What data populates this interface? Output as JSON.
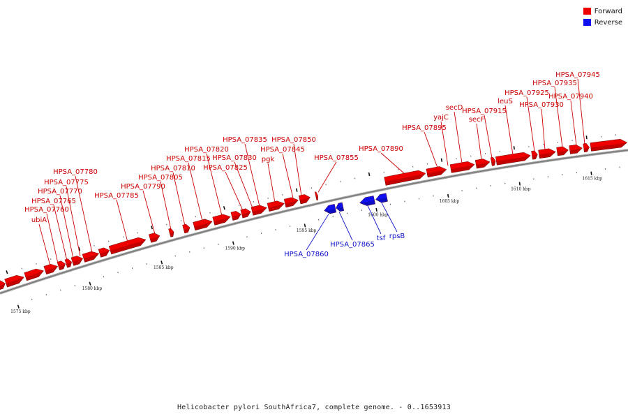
{
  "legend": [
    {
      "label": "Forward",
      "color": "#ee0000"
    },
    {
      "label": "Reverse",
      "color": "#1010ee"
    }
  ],
  "footer": "Helicobacter pylori SouthAfrica7, complete genome. - 0..1653913",
  "colors": {
    "forward": "#ee0000",
    "reverse": "#1010ee",
    "forward_label": "#cc0000",
    "reverse_label": "#1010cc",
    "backbone": "#888888"
  },
  "ruler_labels": [
    "1575 kbp",
    "1580 kbp",
    "1585 kbp",
    "1590 kbp",
    "1595 kbp",
    "1600 kbp",
    "1605 kbp",
    "1610 kbp",
    "1615 kbp"
  ],
  "forward_labels": [
    "ubiA",
    "HPSA_07760",
    "HPSA_07765",
    "HPSA_07770",
    "HPSA_07775",
    "HPSA_07780",
    "HPSA_07785",
    "HPSA_07790",
    "HPSA_07805",
    "HPSA_07810",
    "HPSA_07815",
    "HPSA_07820",
    "HPSA_07825",
    "HPSA_07830",
    "HPSA_07835",
    "pgk",
    "HPSA_07845",
    "HPSA_07850",
    "HPSA_07855",
    "HPSA_07890",
    "HPSA_07895",
    "yajC",
    "secD",
    "secF",
    "HPSA_07915",
    "leuS",
    "HPSA_07925",
    "HPSA_07930",
    "HPSA_07935",
    "HPSA_07940",
    "HPSA_07945"
  ],
  "reverse_labels": [
    "HPSA_07860",
    "HPSA_07865",
    "tsf",
    "rpsB"
  ]
}
